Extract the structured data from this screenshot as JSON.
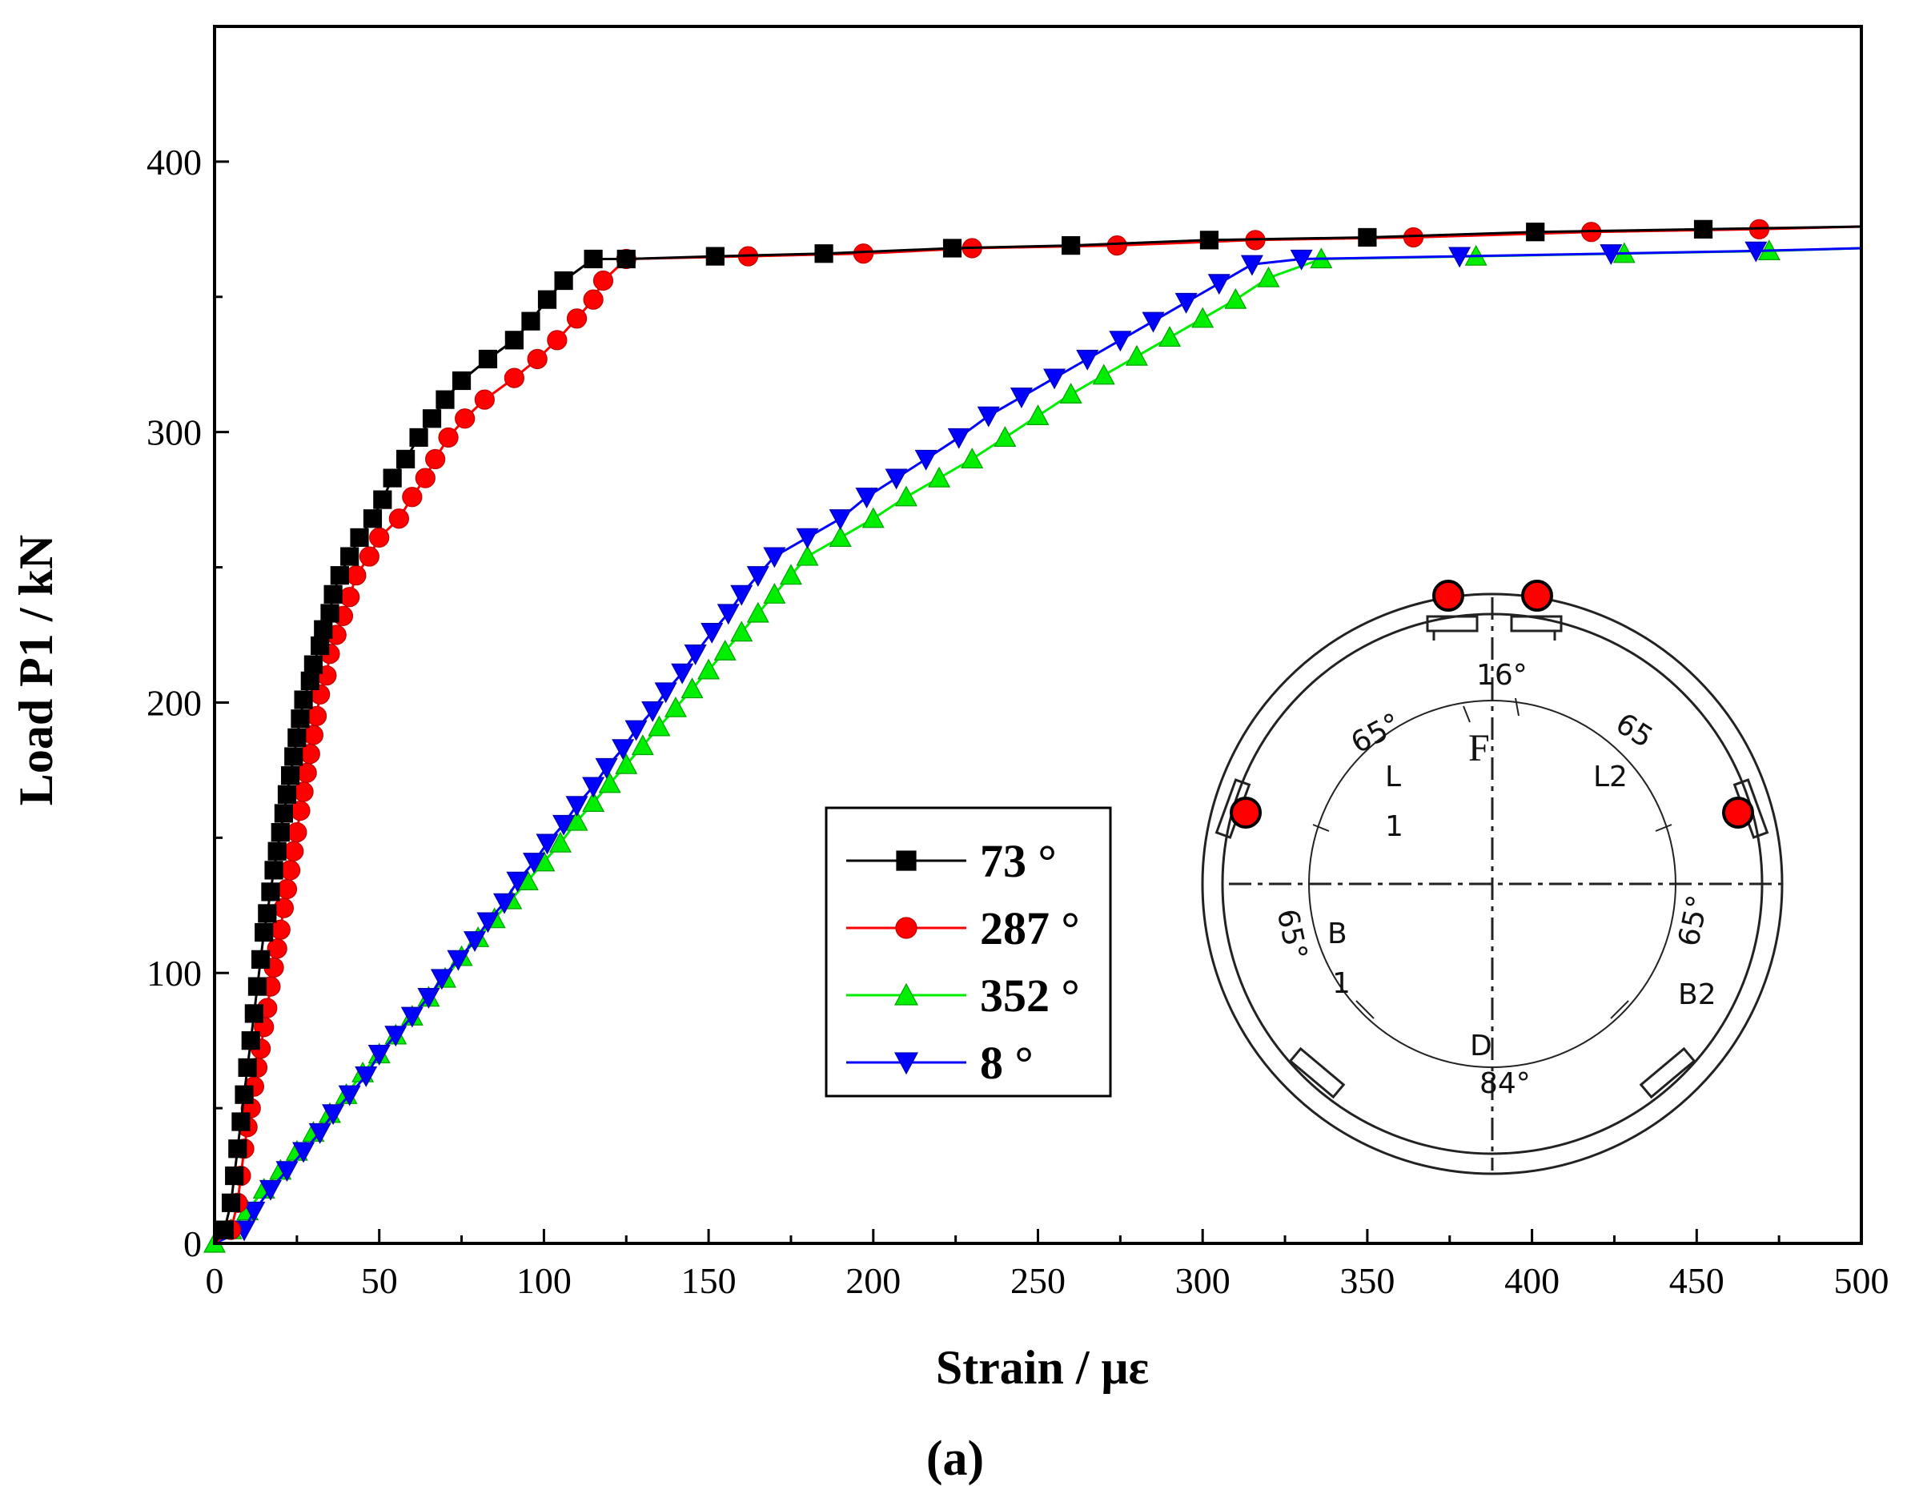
{
  "chart_data": {
    "type": "line",
    "xlabel": "Strain / με",
    "ylabel": "Load P1 / kN",
    "panel_label": "(a)",
    "xlim": [
      0,
      500
    ],
    "ylim": [
      0,
      450
    ],
    "x_ticks": [
      0,
      50,
      100,
      150,
      200,
      250,
      300,
      350,
      400,
      450,
      500
    ],
    "y_ticks": [
      0,
      100,
      200,
      300,
      400
    ],
    "x_tick_labels": [
      "0",
      "50",
      "100",
      "150",
      "200",
      "250",
      "300",
      "350",
      "400",
      "450",
      "500"
    ],
    "y_tick_labels": [
      "0",
      "100",
      "200",
      "300",
      "400"
    ],
    "legend_position": "middle-center",
    "series": [
      {
        "name": "73 °",
        "color": "#000000",
        "marker": "square",
        "points": [
          [
            0,
            0
          ],
          [
            3,
            5
          ],
          [
            5,
            15
          ],
          [
            6,
            25
          ],
          [
            7,
            35
          ],
          [
            8,
            45
          ],
          [
            9,
            55
          ],
          [
            10,
            65
          ],
          [
            11,
            75
          ],
          [
            12,
            85
          ],
          [
            13,
            95
          ],
          [
            14,
            105
          ],
          [
            15,
            115
          ],
          [
            16,
            122
          ],
          [
            17,
            130
          ],
          [
            18,
            138
          ],
          [
            19,
            145
          ],
          [
            20,
            152
          ],
          [
            21,
            159
          ],
          [
            22,
            166
          ],
          [
            23,
            173
          ],
          [
            24,
            180
          ],
          [
            25,
            187
          ],
          [
            26,
            194
          ],
          [
            27,
            201
          ],
          [
            29,
            208
          ],
          [
            30,
            214
          ],
          [
            32,
            221
          ],
          [
            33,
            227
          ],
          [
            35,
            233
          ],
          [
            36,
            240
          ],
          [
            38,
            247
          ],
          [
            41,
            254
          ],
          [
            44,
            261
          ],
          [
            48,
            268
          ],
          [
            51,
            275
          ],
          [
            54,
            283
          ],
          [
            58,
            290
          ],
          [
            62,
            298
          ],
          [
            66,
            305
          ],
          [
            70,
            312
          ],
          [
            75,
            319
          ],
          [
            83,
            327
          ],
          [
            91,
            334
          ],
          [
            96,
            341
          ],
          [
            101,
            349
          ],
          [
            106,
            356
          ],
          [
            115,
            364
          ],
          [
            125,
            364
          ],
          [
            152,
            365
          ],
          [
            185,
            366
          ],
          [
            224,
            368
          ],
          [
            260,
            369
          ],
          [
            302,
            371
          ],
          [
            350,
            372
          ],
          [
            401,
            374
          ],
          [
            452,
            375
          ],
          [
            500,
            376
          ]
        ]
      },
      {
        "name": "287 °",
        "color": "#ff0000",
        "marker": "circle",
        "points": [
          [
            0,
            0
          ],
          [
            5,
            5
          ],
          [
            7,
            15
          ],
          [
            8,
            25
          ],
          [
            9,
            35
          ],
          [
            10,
            43
          ],
          [
            11,
            50
          ],
          [
            12,
            58
          ],
          [
            13,
            65
          ],
          [
            14,
            72
          ],
          [
            15,
            80
          ],
          [
            16,
            87
          ],
          [
            17,
            95
          ],
          [
            18,
            102
          ],
          [
            19,
            109
          ],
          [
            20,
            116
          ],
          [
            21,
            124
          ],
          [
            22,
            131
          ],
          [
            23,
            138
          ],
          [
            24,
            145
          ],
          [
            25,
            152
          ],
          [
            26,
            160
          ],
          [
            27,
            167
          ],
          [
            28,
            174
          ],
          [
            29,
            181
          ],
          [
            30,
            188
          ],
          [
            31,
            195
          ],
          [
            32,
            203
          ],
          [
            34,
            210
          ],
          [
            35,
            218
          ],
          [
            37,
            225
          ],
          [
            39,
            232
          ],
          [
            41,
            239
          ],
          [
            43,
            247
          ],
          [
            47,
            254
          ],
          [
            50,
            261
          ],
          [
            56,
            268
          ],
          [
            60,
            276
          ],
          [
            64,
            283
          ],
          [
            67,
            290
          ],
          [
            71,
            298
          ],
          [
            76,
            305
          ],
          [
            82,
            312
          ],
          [
            91,
            320
          ],
          [
            98,
            327
          ],
          [
            104,
            334
          ],
          [
            110,
            342
          ],
          [
            115,
            349
          ],
          [
            118,
            356
          ],
          [
            125,
            364
          ],
          [
            162,
            365
          ],
          [
            197,
            366
          ],
          [
            230,
            368
          ],
          [
            274,
            369
          ],
          [
            316,
            371
          ],
          [
            364,
            372
          ],
          [
            418,
            374
          ],
          [
            469,
            375
          ],
          [
            500,
            376
          ]
        ]
      },
      {
        "name": "352 °",
        "color": "#00ee00",
        "marker": "triangle-up",
        "points": [
          [
            0,
            0
          ],
          [
            5,
            5
          ],
          [
            10,
            12
          ],
          [
            15,
            20
          ],
          [
            20,
            27
          ],
          [
            25,
            34
          ],
          [
            30,
            41
          ],
          [
            35,
            48
          ],
          [
            40,
            55
          ],
          [
            45,
            63
          ],
          [
            50,
            70
          ],
          [
            55,
            77
          ],
          [
            60,
            84
          ],
          [
            65,
            91
          ],
          [
            70,
            98
          ],
          [
            75,
            106
          ],
          [
            80,
            113
          ],
          [
            85,
            120
          ],
          [
            90,
            127
          ],
          [
            95,
            134
          ],
          [
            100,
            141
          ],
          [
            105,
            148
          ],
          [
            110,
            156
          ],
          [
            115,
            163
          ],
          [
            120,
            170
          ],
          [
            125,
            177
          ],
          [
            130,
            184
          ],
          [
            135,
            191
          ],
          [
            140,
            198
          ],
          [
            145,
            205
          ],
          [
            150,
            212
          ],
          [
            155,
            219
          ],
          [
            160,
            226
          ],
          [
            165,
            233
          ],
          [
            170,
            240
          ],
          [
            175,
            247
          ],
          [
            180,
            254
          ],
          [
            190,
            261
          ],
          [
            200,
            268
          ],
          [
            210,
            276
          ],
          [
            220,
            283
          ],
          [
            230,
            290
          ],
          [
            240,
            298
          ],
          [
            250,
            306
          ],
          [
            260,
            314
          ],
          [
            270,
            321
          ],
          [
            280,
            328
          ],
          [
            290,
            335
          ],
          [
            300,
            342
          ],
          [
            310,
            349
          ],
          [
            320,
            357
          ],
          [
            336,
            364
          ],
          [
            383,
            365
          ],
          [
            428,
            366
          ],
          [
            472,
            367
          ],
          [
            500,
            368
          ]
        ]
      },
      {
        "name": "8 °",
        "color": "#0000ff",
        "marker": "triangle-down",
        "points": [
          [
            0,
            0
          ],
          [
            9,
            5
          ],
          [
            12,
            12
          ],
          [
            17,
            20
          ],
          [
            22,
            27
          ],
          [
            27,
            34
          ],
          [
            32,
            41
          ],
          [
            36,
            48
          ],
          [
            41,
            55
          ],
          [
            46,
            62
          ],
          [
            50,
            70
          ],
          [
            55,
            77
          ],
          [
            60,
            84
          ],
          [
            65,
            91
          ],
          [
            69,
            98
          ],
          [
            74,
            105
          ],
          [
            79,
            112
          ],
          [
            83,
            119
          ],
          [
            88,
            126
          ],
          [
            92,
            134
          ],
          [
            97,
            141
          ],
          [
            101,
            148
          ],
          [
            106,
            155
          ],
          [
            110,
            162
          ],
          [
            115,
            169
          ],
          [
            119,
            176
          ],
          [
            124,
            183
          ],
          [
            128,
            190
          ],
          [
            133,
            197
          ],
          [
            137,
            204
          ],
          [
            142,
            211
          ],
          [
            146,
            218
          ],
          [
            151,
            226
          ],
          [
            156,
            233
          ],
          [
            160,
            240
          ],
          [
            165,
            247
          ],
          [
            170,
            254
          ],
          [
            180,
            261
          ],
          [
            190,
            268
          ],
          [
            198,
            276
          ],
          [
            207,
            283
          ],
          [
            216,
            290
          ],
          [
            226,
            298
          ],
          [
            235,
            306
          ],
          [
            245,
            313
          ],
          [
            255,
            320
          ],
          [
            265,
            327
          ],
          [
            275,
            334
          ],
          [
            285,
            341
          ],
          [
            295,
            348
          ],
          [
            305,
            355
          ],
          [
            315,
            362
          ],
          [
            330,
            364
          ],
          [
            378,
            365
          ],
          [
            424,
            366
          ],
          [
            468,
            367
          ],
          [
            500,
            368
          ]
        ]
      }
    ]
  },
  "inset": {
    "angle_top": "16°",
    "angle_upper_left": "65°",
    "angle_upper_right": "65",
    "angle_lower_left": "65°",
    "angle_lower_right": "65°",
    "angle_bottom": "84°",
    "label_F": "F",
    "label_L1_a": "L",
    "label_L1_b": "1",
    "label_L2": "L2",
    "label_B1_a": "B",
    "label_B1_b": "1",
    "label_B2": "B2",
    "label_D": "D",
    "marker_color": "#ff0000"
  }
}
